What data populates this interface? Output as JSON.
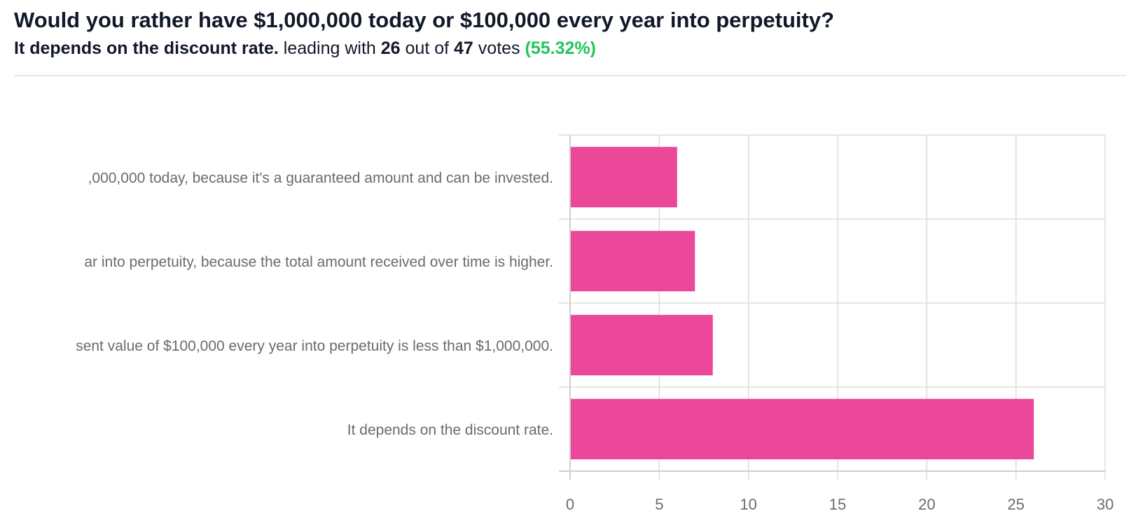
{
  "poll": {
    "question": "Would you rather have $1,000,000 today or $100,000 every year into perpetuity?",
    "leading_option": "It depends on the discount rate.",
    "leading_text": "leading with",
    "leading_votes": "26",
    "out_of_text": "out of",
    "total_votes": "47",
    "votes_text": "votes",
    "leading_percent": "(55.32%)"
  },
  "colors": {
    "bar": "#ec4899",
    "grid": "#dddddd",
    "axis": "#cfcfcf",
    "accent_green": "#22c55e"
  },
  "chart_data": {
    "type": "bar",
    "orientation": "horizontal",
    "categories": [
      ",000,000 today, because it's a guaranteed amount and can be invested.",
      "ar into perpetuity, because the total amount received over time is higher.",
      "sent value of $100,000 every year into perpetuity is less than $1,000,000.",
      "It depends on the discount rate."
    ],
    "values": [
      6,
      7,
      8,
      26
    ],
    "xlim": [
      0,
      30
    ],
    "xticks": [
      0,
      5,
      10,
      15,
      20,
      25,
      30
    ],
    "grid": true,
    "title": "",
    "xlabel": "",
    "ylabel": ""
  }
}
